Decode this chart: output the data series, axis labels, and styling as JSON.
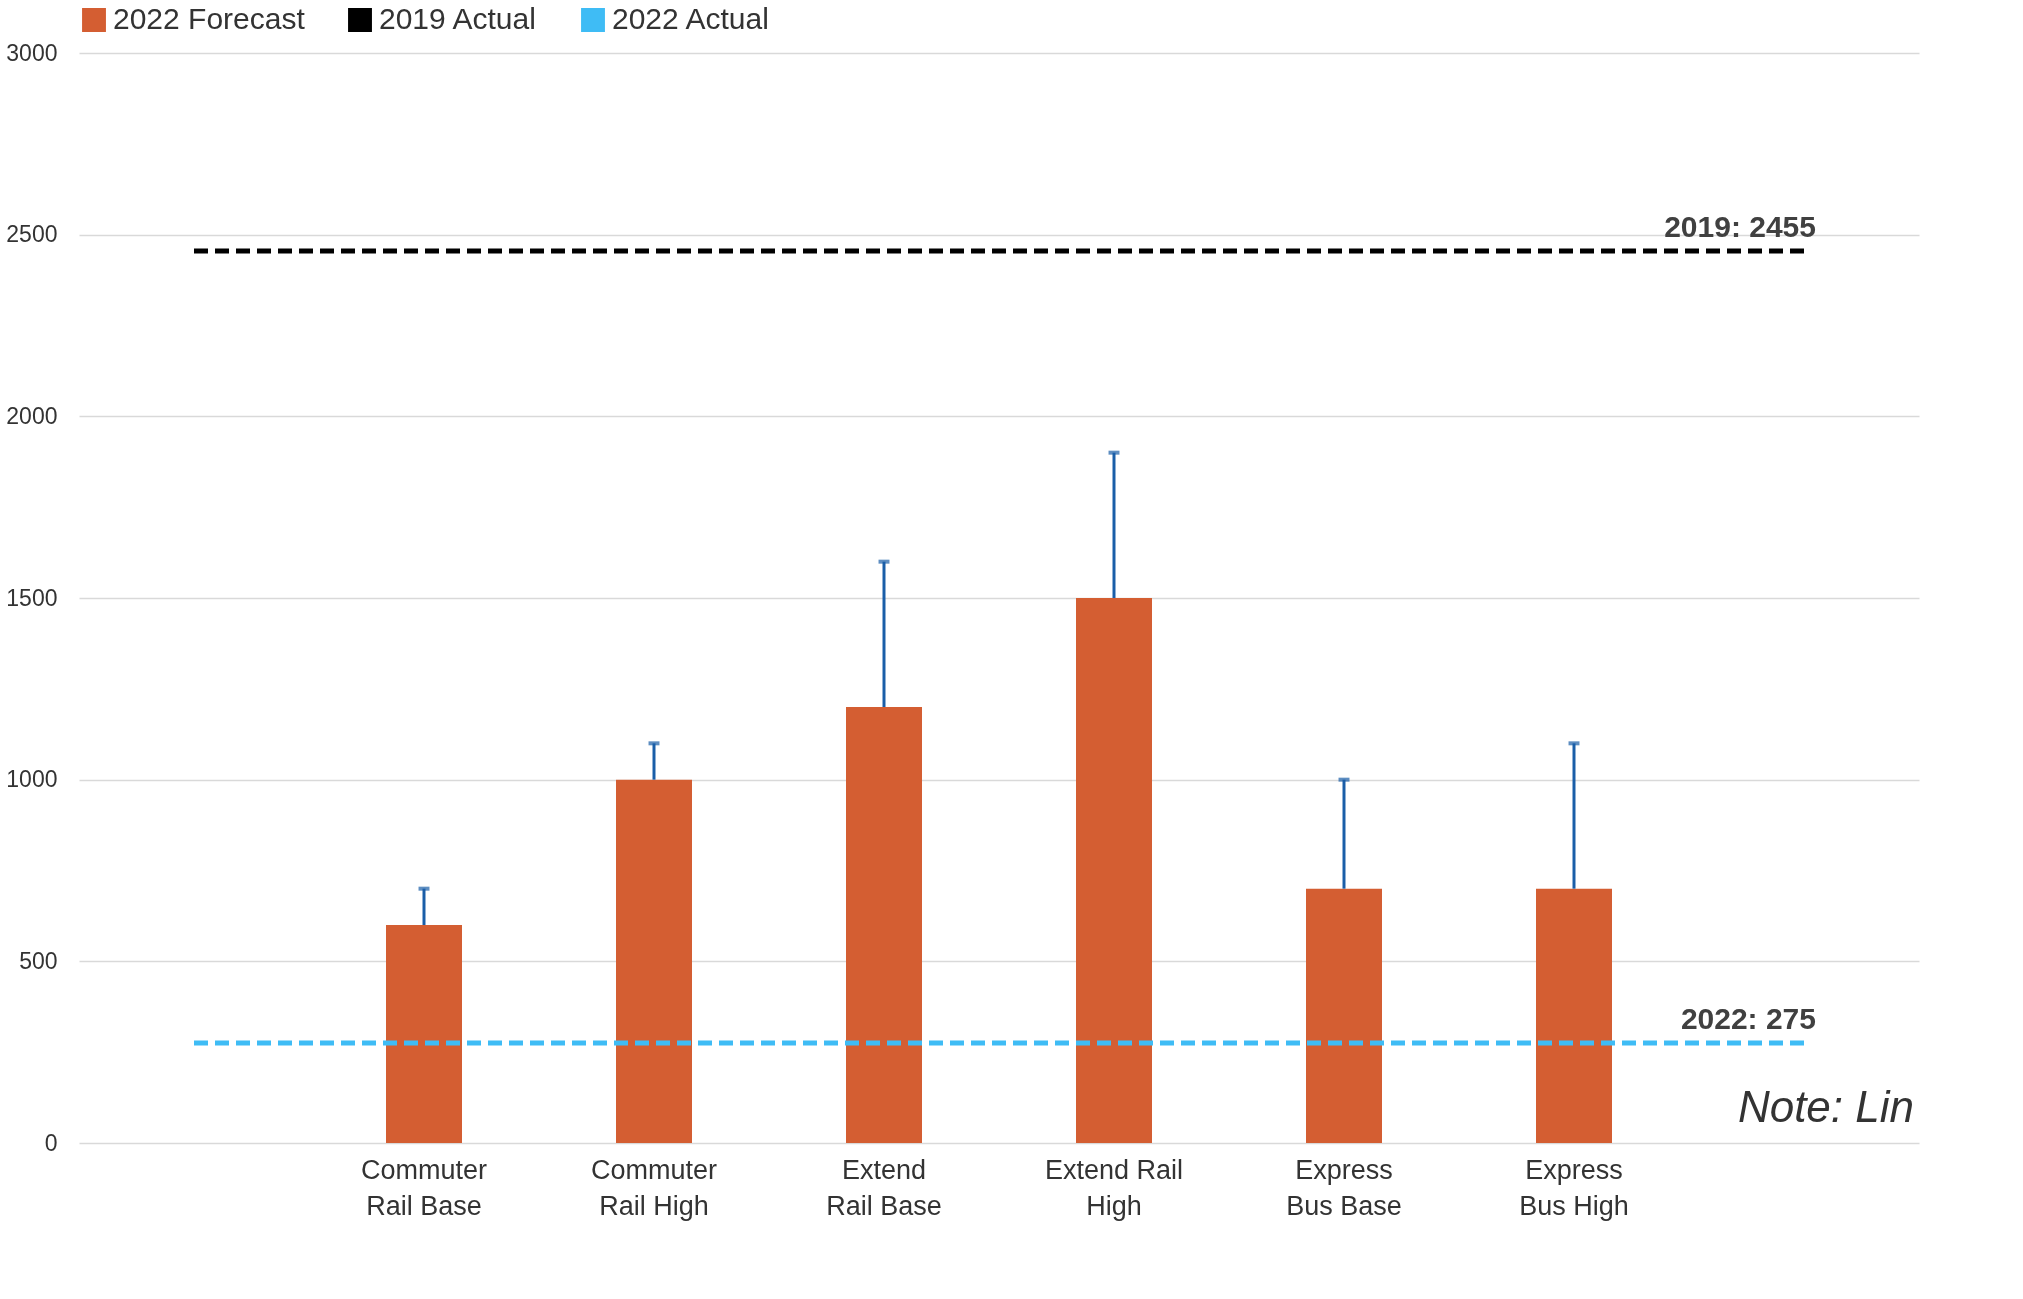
{
  "chart_data": {
    "type": "bar",
    "categories": [
      null,
      "Commuter\nRail Base",
      "Commuter\nRail High",
      "Extend\nRail Base",
      "Extend Rail\nHigh",
      "Express\nBus Base",
      "Express\nBus High",
      null
    ],
    "series": [
      {
        "name": "2022 Forecast",
        "color": "#d45e32",
        "values": [
          null,
          600,
          1000,
          1200,
          1500,
          700,
          700,
          null
        ],
        "errors": [
          null,
          [
            600,
            700
          ],
          [
            1000,
            1100
          ],
          [
            1200,
            1600
          ],
          [
            1500,
            1900
          ],
          [
            700,
            1000
          ],
          [
            700,
            1100
          ],
          null
        ]
      },
      {
        "name": "2019 Actual",
        "type": "line",
        "line_style": "dashed",
        "color": "#000000",
        "values": [
          2455,
          2455,
          2455,
          2455,
          2455,
          2455,
          2455,
          2455
        ]
      },
      {
        "name": "2022 Actual",
        "type": "line",
        "line_style": "dashed",
        "color": "#3fbcf5",
        "values": [
          275,
          275,
          275,
          275,
          275,
          275,
          275,
          275
        ]
      }
    ],
    "ylim": [
      0,
      3000
    ],
    "yticks": [
      0,
      500,
      1000,
      1500,
      2000,
      2500,
      3000
    ],
    "grid": "y",
    "legend": "top",
    "annotations": [
      {
        "text": "2019: 2455",
        "y": 2455
      },
      {
        "text": "2022: 275",
        "y": 275
      },
      "Note: Lin"
    ]
  }
}
